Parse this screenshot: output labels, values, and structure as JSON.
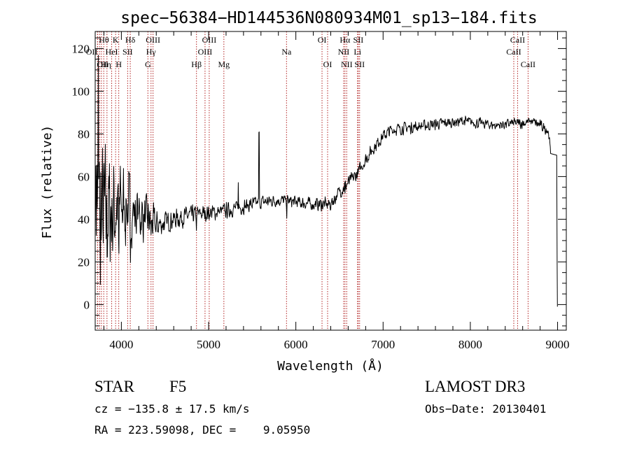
{
  "chart_data": {
    "type": "line",
    "title": "spec−56384−HD144536N080934M01_sp13−184.fits",
    "xlabel": "Wavelength (Å)",
    "ylabel": "Flux (relative)",
    "xlim": [
      3700,
      9100
    ],
    "ylim": [
      -12,
      128
    ],
    "x_ticks": [
      4000,
      5000,
      6000,
      7000,
      8000,
      9000
    ],
    "x_tick_labels": [
      "4000",
      "5000",
      "6000",
      "7000",
      "8000",
      "9000"
    ],
    "y_ticks": [
      0,
      20,
      40,
      60,
      80,
      100,
      120
    ],
    "y_tick_labels": [
      "0",
      "20",
      "40",
      "60",
      "80",
      "100",
      "120"
    ],
    "x_minor_step": 200,
    "y_minor_step": 5,
    "grid": false,
    "series": [
      {
        "name": "spectrum",
        "noise_seed": 7,
        "continuum_x": [
          3700,
          3750,
          3800,
          3900,
          4000,
          4100,
          4200,
          4300,
          4400,
          4600,
          4800,
          5000,
          5200,
          5400,
          5600,
          5800,
          6000,
          6200,
          6400,
          6500,
          6600,
          6700,
          6800,
          6900,
          7000,
          7100,
          7300,
          7500,
          7700,
          7900,
          8100,
          8300,
          8500,
          8600,
          8700,
          8800,
          8880,
          8900,
          8920
        ],
        "continuum_y": [
          60,
          45,
          42,
          44,
          47,
          45,
          42,
          40,
          37,
          40,
          42,
          43,
          44,
          46,
          48,
          49,
          48,
          47,
          47,
          53,
          57,
          61,
          68,
          74,
          79,
          82,
          83,
          84,
          85,
          86,
          85,
          84,
          85,
          85,
          86,
          84,
          82,
          80,
          70
        ],
        "noise_x": [
          3700,
          3900,
          4100,
          4300,
          4500,
          5000,
          6000,
          6600,
          7000,
          8000,
          9000
        ],
        "noise_amp": [
          48,
          34,
          20,
          12,
          6,
          4.5,
          3.5,
          4,
          3.5,
          3,
          3
        ],
        "features": [
          {
            "x": 5578,
            "dy": 32
          },
          {
            "x": 5895,
            "dy": -6
          },
          {
            "x": 3735,
            "dy": 55
          },
          {
            "x": 3760,
            "dy": -40
          },
          {
            "x": 3970,
            "dy": -30
          },
          {
            "x": 4102,
            "dy": -25
          },
          {
            "x": 4340,
            "dy": -10
          },
          {
            "x": 4861,
            "dy": -8
          },
          {
            "x": 5340,
            "dy": 15
          },
          {
            "x": 6563,
            "dy": -5
          }
        ],
        "end_drop": [
          {
            "x": 8990,
            "y": 70
          },
          {
            "x": 8995,
            "y": 20
          },
          {
            "x": 8998,
            "y": -1
          }
        ]
      }
    ],
    "line_markers": [
      {
        "x": 3727,
        "label": "OII",
        "row": 2,
        "anchor": "end"
      },
      {
        "x": 3727,
        "label": "OII",
        "row": 3,
        "anchor": "start"
      },
      {
        "x": 3750,
        "label": "Hθ",
        "row": 1,
        "anchor": "start"
      },
      {
        "x": 3771,
        "label": "Hη",
        "row": 3,
        "anchor": "start"
      },
      {
        "x": 3798,
        "label": "",
        "row": 0,
        "anchor": "start"
      },
      {
        "x": 3835,
        "label": "",
        "row": 0,
        "anchor": "start"
      },
      {
        "x": 3889,
        "label": "HeI",
        "row": 2,
        "anchor": "middle"
      },
      {
        "x": 3934,
        "label": "K",
        "row": 1,
        "anchor": "middle"
      },
      {
        "x": 3970,
        "label": "H",
        "row": 3,
        "anchor": "middle"
      },
      {
        "x": 4072,
        "label": "SII",
        "row": 2,
        "anchor": "middle"
      },
      {
        "x": 4102,
        "label": "Hδ",
        "row": 1,
        "anchor": "middle"
      },
      {
        "x": 4304,
        "label": "G",
        "row": 3,
        "anchor": "middle"
      },
      {
        "x": 4340,
        "label": "Hγ",
        "row": 2,
        "anchor": "middle"
      },
      {
        "x": 4363,
        "label": "OIII",
        "row": 1,
        "anchor": "middle"
      },
      {
        "x": 4861,
        "label": "Hβ",
        "row": 3,
        "anchor": "middle"
      },
      {
        "x": 4959,
        "label": "OIII",
        "row": 2,
        "anchor": "middle"
      },
      {
        "x": 5007,
        "label": "OIII",
        "row": 1,
        "anchor": "middle"
      },
      {
        "x": 5175,
        "label": "Mg",
        "row": 3,
        "anchor": "middle"
      },
      {
        "x": 5893,
        "label": "Na",
        "row": 2,
        "anchor": "middle"
      },
      {
        "x": 6300,
        "label": "OI",
        "row": 1,
        "anchor": "middle"
      },
      {
        "x": 6364,
        "label": "OI",
        "row": 3,
        "anchor": "middle"
      },
      {
        "x": 6548,
        "label": "NII",
        "row": 2,
        "anchor": "middle"
      },
      {
        "x": 6563,
        "label": "Hα",
        "row": 1,
        "anchor": "middle"
      },
      {
        "x": 6583,
        "label": "NII",
        "row": 3,
        "anchor": "middle"
      },
      {
        "x": 6707,
        "label": "Li",
        "row": 2,
        "anchor": "middle"
      },
      {
        "x": 6716,
        "label": "SII",
        "row": 1,
        "anchor": "middle"
      },
      {
        "x": 6731,
        "label": "SII",
        "row": 3,
        "anchor": "middle"
      },
      {
        "x": 8498,
        "label": "CaII",
        "row": 2,
        "anchor": "middle"
      },
      {
        "x": 8542,
        "label": "CaII",
        "row": 1,
        "anchor": "middle"
      },
      {
        "x": 8662,
        "label": "CaII",
        "row": 3,
        "anchor": "middle"
      }
    ]
  },
  "info": {
    "class_label": "STAR",
    "subclass": "F5",
    "survey": "LAMOST DR3",
    "cz_text": "cz = −135.8 ± 17.5 km/s",
    "obs_date_text": "Obs−Date: 20130401",
    "radec_text": "RA = 223.59098, DEC =    9.05950"
  },
  "colors": {
    "line": "#000000",
    "marker": "#b22222",
    "axis": "#000000"
  }
}
